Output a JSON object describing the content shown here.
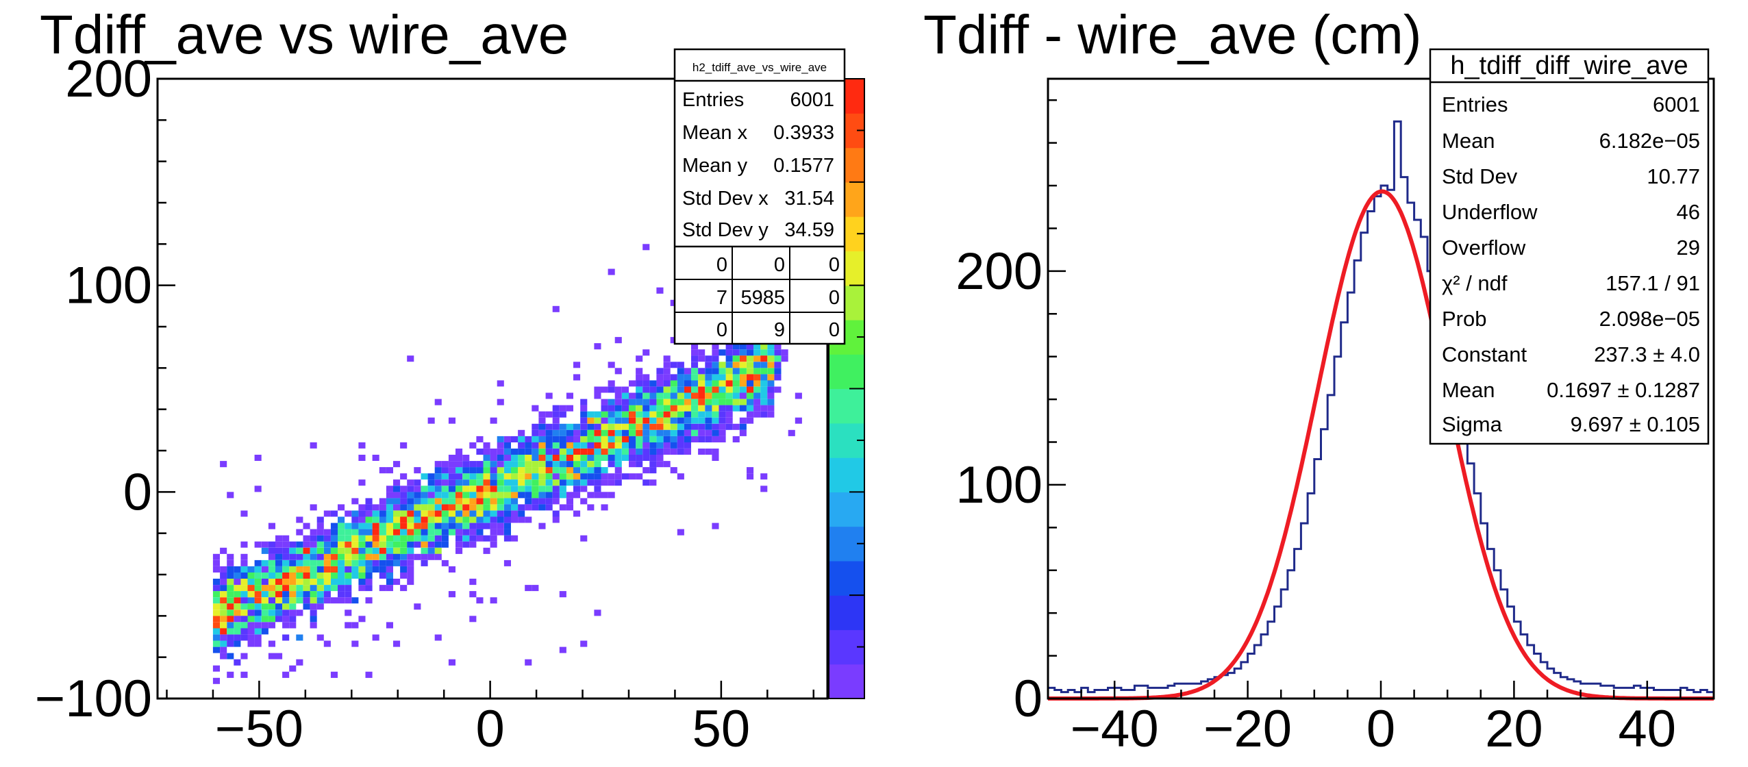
{
  "chart_data": [
    {
      "type": "heatmap",
      "title": "Tdiff_ave vs wire_ave",
      "xlabel": "",
      "ylabel": "",
      "xlim": [
        -72,
        73
      ],
      "ylim": [
        -100,
        200
      ],
      "x_ticks": [
        "−50",
        "0",
        "50"
      ],
      "x_tick_values": [
        -50,
        0,
        50
      ],
      "y_ticks": [
        "−100",
        "0",
        "100",
        "200"
      ],
      "y_tick_values": [
        -100,
        0,
        100,
        200
      ],
      "colorbar": "rainbow",
      "correlation": {
        "slope": 1.0,
        "intercept": 0.0,
        "x_range": [
          -60,
          62
        ],
        "y_spread_sigma": 9.7
      },
      "stats_box": {
        "name": "h2_tdiff_ave_vs_wire_ave",
        "rows": [
          {
            "label": "Entries",
            "value": "6001"
          },
          {
            "label": "Mean x",
            "value": "0.3933"
          },
          {
            "label": "Mean y",
            "value": "0.1577"
          },
          {
            "label": "Std Dev x",
            "value": "31.54"
          },
          {
            "label": "Std Dev y",
            "value": "34.59"
          }
        ],
        "grid": [
          [
            "0",
            "0",
            "0"
          ],
          [
            "7",
            "5985",
            "0"
          ],
          [
            "0",
            "9",
            "0"
          ]
        ]
      }
    },
    {
      "type": "line",
      "title": "Tdiff - wire_ave (cm)",
      "xlabel": "",
      "ylabel": "",
      "xlim": [
        -50,
        50
      ],
      "ylim": [
        0,
        290
      ],
      "x_ticks": [
        "−40",
        "−20",
        "0",
        "20",
        "40"
      ],
      "x_tick_values": [
        -40,
        -20,
        0,
        20,
        40
      ],
      "y_ticks": [
        "0",
        "100",
        "200"
      ],
      "y_tick_values": [
        0,
        100,
        200
      ],
      "bin_width": 1,
      "histogram": {
        "color": "#1f2a8a",
        "x_start": -50,
        "counts": [
          5,
          4,
          3,
          4,
          3,
          5,
          3,
          4,
          4,
          5,
          5,
          4,
          4,
          6,
          6,
          5,
          5,
          5,
          6,
          7,
          7,
          7,
          7,
          8,
          9,
          10,
          11,
          12,
          14,
          17,
          21,
          25,
          30,
          36,
          43,
          51,
          60,
          70,
          82,
          96,
          112,
          126,
          142,
          160,
          176,
          190,
          205,
          218,
          228,
          235,
          240,
          238,
          270,
          244,
          232,
          224,
          216,
          200,
          185,
          170,
          155,
          140,
          125,
          110,
          96,
          82,
          70,
          60,
          51,
          43,
          36,
          30,
          25,
          21,
          17,
          14,
          12,
          10,
          9,
          8,
          7,
          7,
          7,
          6,
          6,
          5,
          5,
          5,
          6,
          5,
          5,
          4,
          4,
          4,
          4,
          5,
          4,
          3,
          4,
          3
        ]
      },
      "fit": {
        "color": "#ee1c24",
        "constant": 237.3,
        "mean": 0.1697,
        "sigma": 9.697
      },
      "stats_box": {
        "name": "h_tdiff_diff_wire_ave",
        "rows": [
          {
            "label": "Entries",
            "value": "6001"
          },
          {
            "label": "Mean",
            "value": "6.182e−05"
          },
          {
            "label": "Std Dev",
            "value": "10.77"
          },
          {
            "label": "Underflow",
            "value": "46"
          },
          {
            "label": "Overflow",
            "value": "29"
          },
          {
            "label": "χ² / ndf",
            "value": "157.1 / 91"
          },
          {
            "label": "Prob",
            "value": "2.098e−05"
          },
          {
            "label": "Constant",
            "value": "237.3 ± 4.0"
          },
          {
            "label": "Mean",
            "value": "0.1697 ± 0.1287"
          },
          {
            "label": "Sigma",
            "value": "9.697 ± 0.105"
          }
        ]
      }
    }
  ]
}
